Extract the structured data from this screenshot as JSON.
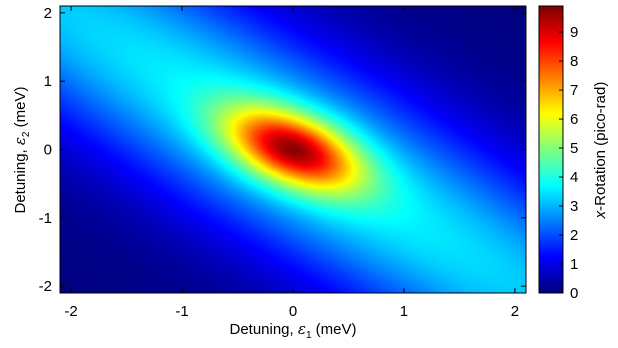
{
  "chart_data": {
    "type": "heatmap",
    "xlabel": {
      "prefix": "Detuning, ",
      "symbol": "ε",
      "sub": "1",
      "suffix": " (meV)"
    },
    "ylabel": {
      "prefix": "Detuning, ",
      "symbol": "ε",
      "sub": "2",
      "suffix": " (meV)"
    },
    "xlim": [
      -2.1,
      2.1
    ],
    "ylim": [
      -2.1,
      2.1
    ],
    "xticks": [
      -2,
      -1,
      0,
      1,
      2
    ],
    "yticks": [
      -2,
      -1,
      0,
      1,
      2
    ],
    "colorbar": {
      "label": {
        "italic": "x",
        "rest": "-Rotation (pico-rad)"
      },
      "lim": [
        0,
        9.9
      ],
      "ticks": [
        0,
        1,
        2,
        3,
        4,
        5,
        6,
        7,
        8,
        9
      ],
      "colormap": "jet"
    },
    "peak": {
      "x": 0,
      "y": 0,
      "value": 9.8
    },
    "corner_values": {
      "top_left": 3.2,
      "top_right": 0.4,
      "bottom_left": 0.4,
      "bottom_right": 3.2
    },
    "features": "Single central maximum (~9.8 pico-rad at 0,0), elongated along the anti-diagonal; high ridge (~3-4) running toward top-left and bottom-right corners; minima (~0-1) in top-right and bottom-left corners."
  }
}
